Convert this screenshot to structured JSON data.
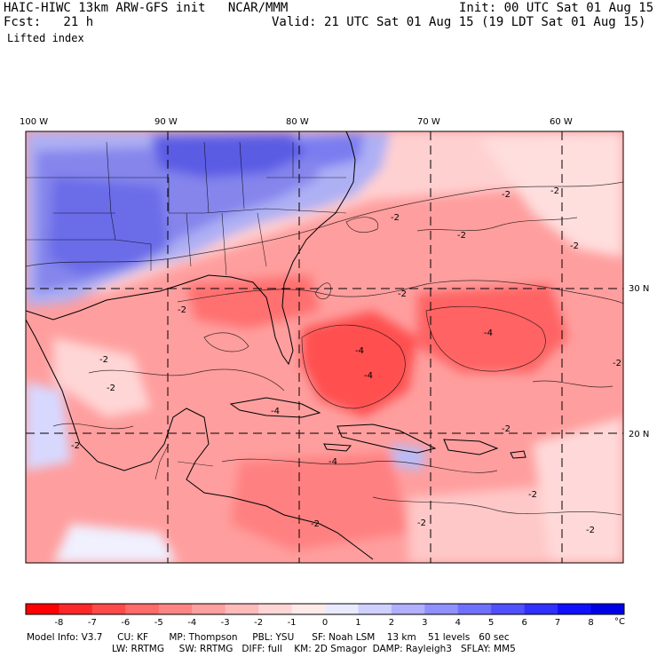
{
  "header": {
    "title_left": "HAIC-HIWC 13km ARW-GFS init   NCAR/MMM",
    "init": "Init: 00 UTC Sat 01 Aug 15",
    "fcst": "Fcst:   21 h",
    "valid": "Valid: 21 UTC Sat 01 Aug 15 (19 LDT Sat 01 Aug 15)",
    "field": "Lifted index"
  },
  "map": {
    "lon_labels": [
      "100 W",
      "90 W",
      "80 W",
      "70 W",
      "60 W"
    ],
    "lat_labels": [
      "30 N",
      "20 N"
    ],
    "contour_labels": [
      "-2",
      "-2",
      "-2",
      "-2",
      "-2",
      "-2",
      "-2",
      "-2",
      "-2",
      "-2",
      "-2",
      "-2",
      "-4",
      "-4",
      "-4",
      "-4",
      "-4",
      "-2",
      "-2",
      "-2",
      "-2"
    ]
  },
  "colorbar": {
    "ticks": [
      "-8",
      "-7",
      "-6",
      "-5",
      "-4",
      "-3",
      "-2",
      "-1",
      "0",
      "1",
      "2",
      "3",
      "4",
      "5",
      "6",
      "7",
      "8"
    ],
    "unit": "°C",
    "colors": [
      "#ff0000",
      "#ff2828",
      "#ff4a4a",
      "#ff6a6a",
      "#ff8585",
      "#ffa0a0",
      "#ffbaba",
      "#ffd5d5",
      "#ffeaea",
      "#eaeaff",
      "#d0d0ff",
      "#b0b0ff",
      "#9090ff",
      "#7070ff",
      "#5050ff",
      "#3030ff",
      "#1010ff",
      "#0000e6"
    ]
  },
  "footer": {
    "line1": "Model Info: V3.7     CU: KF       MP: Thompson     PBL: YSU      SF: Noah LSM    13 km    51 levels   60 sec",
    "line2": "LW: RRTMG     SW: RRTMG   DIFF: full    KM: 2D Smagor  DAMP: Rayleigh3   SFLAY: MM5"
  }
}
